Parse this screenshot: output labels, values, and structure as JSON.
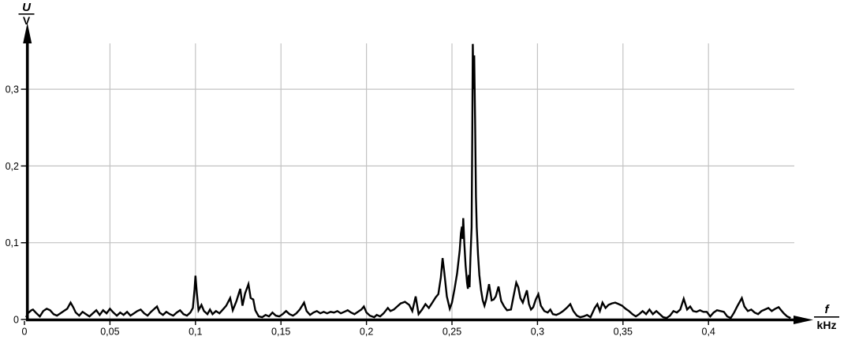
{
  "page": {
    "background": "#ffffff"
  },
  "colors": {
    "trace": "#000000",
    "grid": "#c3c3c3",
    "axis": "#000000",
    "text": "#000000"
  },
  "axes": {
    "y": {
      "numerator": "U",
      "denominator": "V",
      "ticks": [
        {
          "value": 0,
          "label": "0"
        },
        {
          "value": 0.1,
          "label": "0,1"
        },
        {
          "value": 0.2,
          "label": "0,2"
        },
        {
          "value": 0.3,
          "label": "0,3"
        }
      ]
    },
    "x": {
      "numerator": "f",
      "denominator": "kHz",
      "ticks": [
        {
          "value": 0,
          "label": "0"
        },
        {
          "value": 0.05,
          "label": "0,05"
        },
        {
          "value": 0.1,
          "label": "0,1"
        },
        {
          "value": 0.15,
          "label": "0,15"
        },
        {
          "value": 0.2,
          "label": "0,2"
        },
        {
          "value": 0.25,
          "label": "0,25"
        },
        {
          "value": 0.3,
          "label": "0,3"
        },
        {
          "value": 0.35,
          "label": "0,35"
        },
        {
          "value": 0.4,
          "label": "0,4"
        }
      ]
    }
  },
  "chart_data": {
    "type": "line",
    "title": "",
    "xlabel": "f / kHz",
    "ylabel": "U / V",
    "xlim": [
      0,
      0.45
    ],
    "ylim": [
      0,
      0.37
    ],
    "grid": true,
    "x_gridlines": [
      0.05,
      0.1,
      0.15,
      0.2,
      0.25,
      0.3,
      0.35,
      0.4
    ],
    "y_gridlines": [
      0.1,
      0.2,
      0.3
    ],
    "main_peak": {
      "f": 0.262,
      "U": 0.36
    },
    "secondary_peaks": [
      {
        "f": 0.1,
        "U": 0.057
      },
      {
        "f": 0.126,
        "U": 0.04
      },
      {
        "f": 0.131,
        "U": 0.046
      },
      {
        "f": 0.244,
        "U": 0.08
      },
      {
        "f": 0.257,
        "U": 0.132
      }
    ],
    "points": [
      [
        0.001,
        0.003
      ],
      [
        0.002,
        0.008
      ],
      [
        0.004,
        0.012
      ],
      [
        0.005,
        0.013
      ],
      [
        0.007,
        0.008
      ],
      [
        0.009,
        0.004
      ],
      [
        0.011,
        0.011
      ],
      [
        0.013,
        0.014
      ],
      [
        0.015,
        0.012
      ],
      [
        0.017,
        0.007
      ],
      [
        0.019,
        0.005
      ],
      [
        0.021,
        0.008
      ],
      [
        0.023,
        0.011
      ],
      [
        0.025,
        0.014
      ],
      [
        0.027,
        0.022
      ],
      [
        0.0285,
        0.016
      ],
      [
        0.03,
        0.009
      ],
      [
        0.032,
        0.005
      ],
      [
        0.034,
        0.01
      ],
      [
        0.036,
        0.007
      ],
      [
        0.038,
        0.004
      ],
      [
        0.04,
        0.008
      ],
      [
        0.042,
        0.012
      ],
      [
        0.044,
        0.006
      ],
      [
        0.046,
        0.012
      ],
      [
        0.048,
        0.008
      ],
      [
        0.05,
        0.014
      ],
      [
        0.052,
        0.009
      ],
      [
        0.054,
        0.005
      ],
      [
        0.056,
        0.009
      ],
      [
        0.058,
        0.006
      ],
      [
        0.06,
        0.01
      ],
      [
        0.062,
        0.005
      ],
      [
        0.064,
        0.008
      ],
      [
        0.066,
        0.011
      ],
      [
        0.068,
        0.013
      ],
      [
        0.07,
        0.008
      ],
      [
        0.072,
        0.005
      ],
      [
        0.074,
        0.01
      ],
      [
        0.076,
        0.014
      ],
      [
        0.0775,
        0.017
      ],
      [
        0.079,
        0.009
      ],
      [
        0.081,
        0.006
      ],
      [
        0.083,
        0.01
      ],
      [
        0.085,
        0.007
      ],
      [
        0.087,
        0.005
      ],
      [
        0.089,
        0.009
      ],
      [
        0.091,
        0.012
      ],
      [
        0.093,
        0.007
      ],
      [
        0.095,
        0.005
      ],
      [
        0.097,
        0.009
      ],
      [
        0.0985,
        0.015
      ],
      [
        0.0995,
        0.04
      ],
      [
        0.1,
        0.057
      ],
      [
        0.1008,
        0.035
      ],
      [
        0.1018,
        0.012
      ],
      [
        0.1035,
        0.019
      ],
      [
        0.105,
        0.011
      ],
      [
        0.107,
        0.007
      ],
      [
        0.1085,
        0.013
      ],
      [
        0.11,
        0.007
      ],
      [
        0.112,
        0.011
      ],
      [
        0.114,
        0.008
      ],
      [
        0.116,
        0.013
      ],
      [
        0.118,
        0.018
      ],
      [
        0.1203,
        0.028
      ],
      [
        0.1218,
        0.012
      ],
      [
        0.124,
        0.024
      ],
      [
        0.1262,
        0.04
      ],
      [
        0.1275,
        0.018
      ],
      [
        0.129,
        0.034
      ],
      [
        0.131,
        0.046
      ],
      [
        0.1323,
        0.028
      ],
      [
        0.1338,
        0.026
      ],
      [
        0.135,
        0.012
      ],
      [
        0.137,
        0.004
      ],
      [
        0.139,
        0.003
      ],
      [
        0.141,
        0.006
      ],
      [
        0.143,
        0.004
      ],
      [
        0.145,
        0.009
      ],
      [
        0.147,
        0.005
      ],
      [
        0.149,
        0.004
      ],
      [
        0.151,
        0.007
      ],
      [
        0.153,
        0.011
      ],
      [
        0.155,
        0.007
      ],
      [
        0.157,
        0.005
      ],
      [
        0.159,
        0.008
      ],
      [
        0.161,
        0.013
      ],
      [
        0.1635,
        0.022
      ],
      [
        0.165,
        0.011
      ],
      [
        0.167,
        0.006
      ],
      [
        0.169,
        0.009
      ],
      [
        0.171,
        0.011
      ],
      [
        0.173,
        0.008
      ],
      [
        0.175,
        0.01
      ],
      [
        0.177,
        0.008
      ],
      [
        0.179,
        0.01
      ],
      [
        0.181,
        0.009
      ],
      [
        0.183,
        0.011
      ],
      [
        0.185,
        0.008
      ],
      [
        0.187,
        0.01
      ],
      [
        0.189,
        0.012
      ],
      [
        0.191,
        0.009
      ],
      [
        0.193,
        0.007
      ],
      [
        0.195,
        0.01
      ],
      [
        0.197,
        0.013
      ],
      [
        0.1985,
        0.017
      ],
      [
        0.2,
        0.009
      ],
      [
        0.202,
        0.005
      ],
      [
        0.2045,
        0.003
      ],
      [
        0.206,
        0.006
      ],
      [
        0.208,
        0.004
      ],
      [
        0.21,
        0.008
      ],
      [
        0.2125,
        0.015
      ],
      [
        0.214,
        0.011
      ],
      [
        0.216,
        0.013
      ],
      [
        0.218,
        0.017
      ],
      [
        0.22,
        0.021
      ],
      [
        0.2225,
        0.023
      ],
      [
        0.225,
        0.019
      ],
      [
        0.2268,
        0.011
      ],
      [
        0.2288,
        0.03
      ],
      [
        0.2305,
        0.007
      ],
      [
        0.2325,
        0.013
      ],
      [
        0.2345,
        0.02
      ],
      [
        0.2365,
        0.015
      ],
      [
        0.2385,
        0.022
      ],
      [
        0.2405,
        0.029
      ],
      [
        0.242,
        0.033
      ],
      [
        0.2435,
        0.055
      ],
      [
        0.2445,
        0.08
      ],
      [
        0.2455,
        0.062
      ],
      [
        0.247,
        0.03
      ],
      [
        0.2487,
        0.014
      ],
      [
        0.25,
        0.022
      ],
      [
        0.2515,
        0.04
      ],
      [
        0.253,
        0.06
      ],
      [
        0.2545,
        0.09
      ],
      [
        0.2552,
        0.112
      ],
      [
        0.2558,
        0.121
      ],
      [
        0.2562,
        0.105
      ],
      [
        0.2566,
        0.132
      ],
      [
        0.2572,
        0.1
      ],
      [
        0.258,
        0.07
      ],
      [
        0.2588,
        0.048
      ],
      [
        0.2593,
        0.04
      ],
      [
        0.2598,
        0.058
      ],
      [
        0.2603,
        0.042
      ],
      [
        0.2608,
        0.08
      ],
      [
        0.2615,
        0.12
      ],
      [
        0.2619,
        0.25
      ],
      [
        0.2622,
        0.359
      ],
      [
        0.2626,
        0.3
      ],
      [
        0.263,
        0.344
      ],
      [
        0.2635,
        0.26
      ],
      [
        0.264,
        0.16
      ],
      [
        0.2645,
        0.12
      ],
      [
        0.2652,
        0.085
      ],
      [
        0.266,
        0.058
      ],
      [
        0.267,
        0.038
      ],
      [
        0.268,
        0.025
      ],
      [
        0.269,
        0.018
      ],
      [
        0.27,
        0.026
      ],
      [
        0.2717,
        0.046
      ],
      [
        0.2732,
        0.025
      ],
      [
        0.2744,
        0.026
      ],
      [
        0.2756,
        0.03
      ],
      [
        0.2772,
        0.043
      ],
      [
        0.2788,
        0.024
      ],
      [
        0.2805,
        0.017
      ],
      [
        0.2822,
        0.012
      ],
      [
        0.2845,
        0.013
      ],
      [
        0.286,
        0.03
      ],
      [
        0.2876,
        0.048
      ],
      [
        0.2888,
        0.042
      ],
      [
        0.29,
        0.028
      ],
      [
        0.2914,
        0.022
      ],
      [
        0.2926,
        0.03
      ],
      [
        0.2938,
        0.038
      ],
      [
        0.295,
        0.02
      ],
      [
        0.2962,
        0.013
      ],
      [
        0.2975,
        0.016
      ],
      [
        0.299,
        0.026
      ],
      [
        0.3005,
        0.033
      ],
      [
        0.302,
        0.018
      ],
      [
        0.304,
        0.011
      ],
      [
        0.306,
        0.009
      ],
      [
        0.3075,
        0.013
      ],
      [
        0.309,
        0.007
      ],
      [
        0.311,
        0.006
      ],
      [
        0.313,
        0.008
      ],
      [
        0.315,
        0.011
      ],
      [
        0.317,
        0.015
      ],
      [
        0.3192,
        0.02
      ],
      [
        0.321,
        0.011
      ],
      [
        0.323,
        0.005
      ],
      [
        0.325,
        0.003
      ],
      [
        0.327,
        0.004
      ],
      [
        0.329,
        0.006
      ],
      [
        0.331,
        0.003
      ],
      [
        0.3335,
        0.015
      ],
      [
        0.335,
        0.02
      ],
      [
        0.3365,
        0.011
      ],
      [
        0.338,
        0.022
      ],
      [
        0.3398,
        0.015
      ],
      [
        0.3415,
        0.019
      ],
      [
        0.3435,
        0.021
      ],
      [
        0.3455,
        0.022
      ],
      [
        0.3475,
        0.02
      ],
      [
        0.3495,
        0.018
      ],
      [
        0.3515,
        0.014
      ],
      [
        0.3535,
        0.011
      ],
      [
        0.3555,
        0.007
      ],
      [
        0.3575,
        0.004
      ],
      [
        0.3595,
        0.007
      ],
      [
        0.3615,
        0.011
      ],
      [
        0.3635,
        0.007
      ],
      [
        0.3655,
        0.013
      ],
      [
        0.3675,
        0.007
      ],
      [
        0.3695,
        0.011
      ],
      [
        0.3715,
        0.007
      ],
      [
        0.3735,
        0.003
      ],
      [
        0.3755,
        0.002
      ],
      [
        0.3775,
        0.005
      ],
      [
        0.3795,
        0.011
      ],
      [
        0.3815,
        0.009
      ],
      [
        0.3835,
        0.013
      ],
      [
        0.3855,
        0.027
      ],
      [
        0.3875,
        0.013
      ],
      [
        0.3893,
        0.017
      ],
      [
        0.391,
        0.011
      ],
      [
        0.393,
        0.01
      ],
      [
        0.395,
        0.012
      ],
      [
        0.397,
        0.01
      ],
      [
        0.399,
        0.01
      ],
      [
        0.401,
        0.004
      ],
      [
        0.403,
        0.009
      ],
      [
        0.405,
        0.012
      ],
      [
        0.407,
        0.011
      ],
      [
        0.409,
        0.01
      ],
      [
        0.411,
        0.004
      ],
      [
        0.413,
        0.002
      ],
      [
        0.415,
        0.009
      ],
      [
        0.417,
        0.018
      ],
      [
        0.4195,
        0.028
      ],
      [
        0.421,
        0.017
      ],
      [
        0.423,
        0.011
      ],
      [
        0.425,
        0.013
      ],
      [
        0.427,
        0.009
      ],
      [
        0.429,
        0.007
      ],
      [
        0.431,
        0.011
      ],
      [
        0.433,
        0.013
      ],
      [
        0.435,
        0.015
      ],
      [
        0.437,
        0.011
      ],
      [
        0.439,
        0.014
      ],
      [
        0.441,
        0.016
      ],
      [
        0.4425,
        0.012
      ],
      [
        0.444,
        0.008
      ],
      [
        0.446,
        0.004
      ],
      [
        0.448,
        0.002
      ]
    ]
  }
}
